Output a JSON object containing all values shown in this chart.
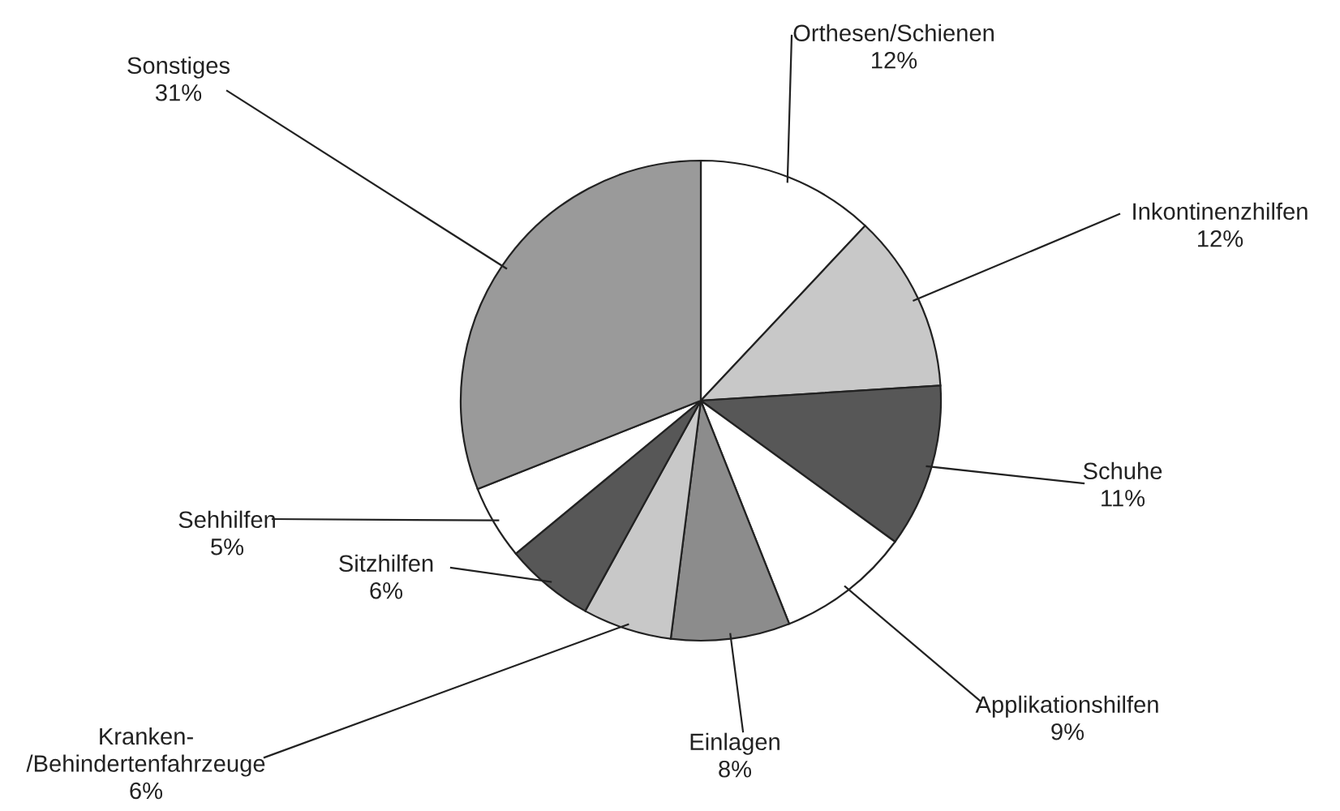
{
  "chart_data": {
    "type": "pie",
    "categories": [
      "Orthesen/Schienen",
      "Inkontinenzhilfen",
      "Schuhe",
      "Applikationshilfen",
      "Einlagen",
      "Kranken-\n/Behindertenfahrzeuge",
      "Sitzhilfen",
      "Sehhilfen",
      "Sonstiges"
    ],
    "values": [
      12,
      12,
      11,
      9,
      8,
      6,
      6,
      5,
      31
    ],
    "colors": [
      "#ffffff",
      "#c8c8c8",
      "#575757",
      "#ffffff",
      "#8c8c8c",
      "#c8c8c8",
      "#575757",
      "#ffffff",
      "#9a9a9a"
    ],
    "value_labels": [
      "12%",
      "12%",
      "11%",
      "9%",
      "8%",
      "6%",
      "6%",
      "5%",
      "31%"
    ]
  }
}
